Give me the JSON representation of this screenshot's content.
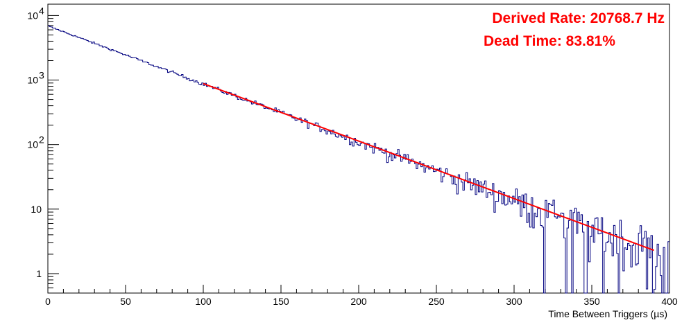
{
  "chart_data": {
    "type": "line",
    "xlabel": "Time Between Triggers (µs)",
    "ylabel": "",
    "xlim": [
      0,
      400
    ],
    "ylim": [
      0.5,
      15000
    ],
    "log_y": true,
    "grid": false,
    "x_ticks": [
      "0",
      "50",
      "100",
      "150",
      "200",
      "250",
      "300",
      "350",
      "400"
    ],
    "y_ticks": [
      {
        "value": 1,
        "label": "1"
      },
      {
        "value": 10,
        "label": "10"
      },
      {
        "value": 100,
        "label": "10",
        "sup": "2"
      },
      {
        "value": 1000,
        "label": "10",
        "sup": "3"
      },
      {
        "value": 10000,
        "label": "10",
        "sup": "4"
      }
    ],
    "series": [
      {
        "style": "histogram",
        "color": "#00007f",
        "model": {
          "a0": 6900,
          "tau": 48.3,
          "bin_width": 1,
          "x_start": 0,
          "x_end": 400
        },
        "points": [
          {
            "x": 0,
            "y": 6900
          },
          {
            "x": 1,
            "y": 6400
          },
          {
            "x": 50,
            "y": 2450
          },
          {
            "x": 100,
            "y": 880
          },
          {
            "x": 150,
            "y": 300
          },
          {
            "x": 200,
            "y": 108
          },
          {
            "x": 250,
            "y": 38
          },
          {
            "x": 300,
            "y": 14
          },
          {
            "x": 350,
            "y": 4.9
          },
          {
            "x": 390,
            "y": 1.8
          }
        ]
      },
      {
        "style": "fit",
        "color": "#ff0000",
        "x_range": [
          100,
          390
        ],
        "y_range": [
          880,
          2.3
        ]
      }
    ],
    "annotations": [
      {
        "text": "Derived Rate: 20768.7 Hz",
        "color": "#ff0000",
        "position": "top-right"
      },
      {
        "text": "Dead Time: 83.81%",
        "color": "#ff0000",
        "position": "top-right"
      }
    ]
  }
}
